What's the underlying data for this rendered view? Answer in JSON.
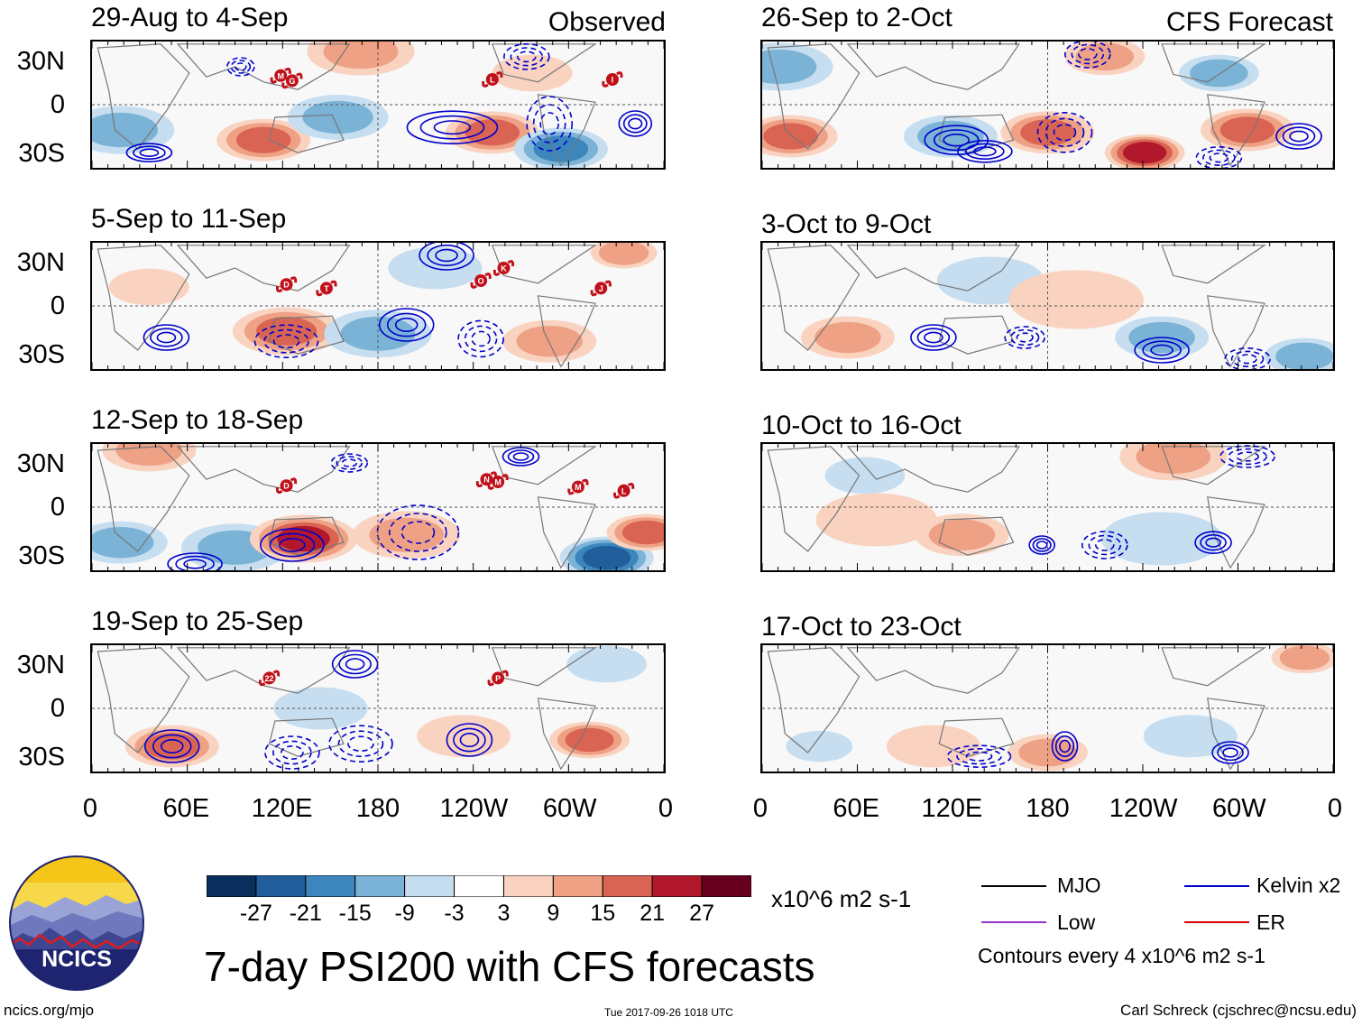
{
  "columns": {
    "left_header": "Observed",
    "right_header": "CFS Forecast"
  },
  "panels": [
    {
      "period": "29-Aug to 4-Sep",
      "column": "observed"
    },
    {
      "period": "5-Sep to 11-Sep",
      "column": "observed"
    },
    {
      "period": "12-Sep to 18-Sep",
      "column": "observed"
    },
    {
      "period": "19-Sep to 25-Sep",
      "column": "observed"
    },
    {
      "period": "26-Sep to 2-Oct",
      "column": "forecast"
    },
    {
      "period": "3-Oct to 9-Oct",
      "column": "forecast"
    },
    {
      "period": "10-Oct to 16-Oct",
      "column": "forecast"
    },
    {
      "period": "17-Oct to 23-Oct",
      "column": "forecast"
    }
  ],
  "chart_data": {
    "type": "heatmap",
    "title": "7-day PSI200 with CFS forecasts",
    "variable": "PSI200",
    "units": "x10^6 m2 s-1",
    "xlabel": "",
    "ylabel": "",
    "x_ticks": [
      "0",
      "60E",
      "120E",
      "180",
      "120W",
      "60W",
      "0"
    ],
    "y_ticks": [
      "30N",
      "0",
      "30S"
    ],
    "contour_interval_note": "Contours every 4 x10^6 m2 s-1",
    "colorbar": {
      "labels": [
        "-27",
        "-21",
        "-15",
        "-9",
        "-3",
        "3",
        "9",
        "15",
        "21",
        "27"
      ],
      "colors": [
        "#0b2f5c",
        "#215f9c",
        "#3d86bd",
        "#7ab3d6",
        "#c6def0",
        "#ffffff",
        "#f9d3c0",
        "#eea185",
        "#da6454",
        "#b2182b",
        "#67001f"
      ]
    },
    "legend": [
      {
        "label": "MJO",
        "color": "#000000"
      },
      {
        "label": "Kelvin x2",
        "color": "#0000cc"
      },
      {
        "label": "Low",
        "color": "#9933cc"
      },
      {
        "label": "ER",
        "color": "#dd0000"
      }
    ],
    "storm_markers": [
      {
        "panel": 0,
        "letters": [
          "M",
          "G",
          "L",
          "I"
        ]
      },
      {
        "panel": 1,
        "letters": [
          "D",
          "T",
          "O",
          "K",
          "J"
        ]
      },
      {
        "panel": 2,
        "letters": [
          "D",
          "N",
          "M",
          "M",
          "L"
        ]
      },
      {
        "panel": 3,
        "letters": [
          "22",
          "P"
        ]
      }
    ]
  },
  "footer": {
    "logo_text": "NCICS",
    "url": "ncics.org/mjo",
    "timestamp": "Tue 2017-09-26 1018 UTC",
    "author": "Carl Schreck (cjschrec@ncsu.edu)"
  }
}
